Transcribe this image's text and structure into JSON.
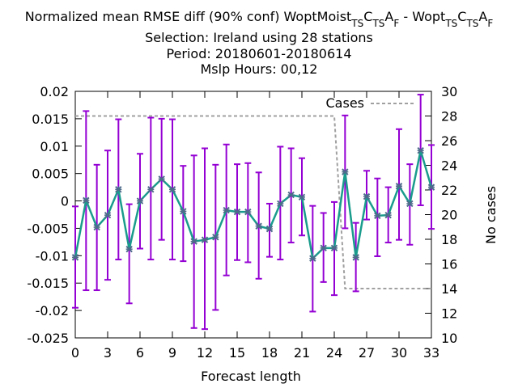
{
  "chart_data": {
    "type": "line",
    "title_lines": [
      "Normalized mean RMSE diff (90% conf) WoptMoist_T_SC_T_SA_F - Wopt_T_SC_T_SA_F",
      "Selection: Ireland using    28 stations",
      "Period: 20180601-20180614",
      "Mslp   Hours:  00,12"
    ],
    "title_first_line_parts": [
      {
        "text": "Normalized mean RMSE diff (90% conf) WoptMoist",
        "sub": false
      },
      {
        "text": "T",
        "sub": true
      },
      {
        "text": "S",
        "sub": true
      },
      {
        "text": "C",
        "sub": false
      },
      {
        "text": "T",
        "sub": true
      },
      {
        "text": "S",
        "sub": true
      },
      {
        "text": "A",
        "sub": false
      },
      {
        "text": "F",
        "sub": true
      },
      {
        "text": " - Wopt",
        "sub": false
      },
      {
        "text": "T",
        "sub": true
      },
      {
        "text": "S",
        "sub": true
      },
      {
        "text": "C",
        "sub": false
      },
      {
        "text": "T",
        "sub": true
      },
      {
        "text": "S",
        "sub": true
      },
      {
        "text": "A",
        "sub": false
      },
      {
        "text": "F",
        "sub": true
      }
    ],
    "xlabel": "Forecast length",
    "ylabel": "",
    "y2label": "No cases",
    "xlim": [
      0,
      33
    ],
    "ylim": [
      -0.025,
      0.02
    ],
    "y2lim": [
      10,
      30
    ],
    "xticks": [
      0,
      3,
      6,
      9,
      12,
      15,
      18,
      21,
      24,
      27,
      30,
      33
    ],
    "yticks": [
      -0.025,
      -0.02,
      -0.015,
      -0.01,
      -0.005,
      0,
      0.005,
      0.01,
      0.015,
      0.02
    ],
    "ytick_labels": [
      "-0.025",
      "-0.02",
      "-0.015",
      "-0.01",
      "-0.005",
      "0",
      "0.005",
      "0.01",
      "0.015",
      "0.02"
    ],
    "y2ticks": [
      10,
      12,
      14,
      16,
      18,
      20,
      22,
      24,
      26,
      28,
      30
    ],
    "legend": {
      "position": "top-right",
      "entries": [
        "Cases"
      ]
    },
    "grid": false,
    "series": [
      {
        "name": "",
        "kind": "mean-with-errorbars",
        "line_color": "#1a9c8c",
        "marker_color": "#4d6b8a",
        "errorbar_color": "#9400d3",
        "x": [
          0,
          1,
          2,
          3,
          4,
          5,
          6,
          7,
          8,
          9,
          10,
          11,
          12,
          13,
          14,
          15,
          16,
          17,
          18,
          19,
          20,
          21,
          22,
          23,
          24,
          25,
          26,
          27,
          28,
          29,
          30,
          31,
          32,
          33
        ],
        "y": [
          -0.0103,
          0.0001,
          -0.0048,
          -0.0026,
          0.0021,
          -0.0088,
          0.0,
          0.0021,
          0.004,
          0.0021,
          -0.0019,
          -0.0074,
          -0.0071,
          -0.0066,
          -0.0017,
          -0.002,
          -0.002,
          -0.0046,
          -0.0051,
          -0.0005,
          0.0011,
          0.0007,
          -0.0105,
          -0.0086,
          -0.0086,
          0.0053,
          -0.0103,
          0.0008,
          -0.0027,
          -0.0026,
          0.0027,
          -0.0005,
          0.0092,
          0.0025
        ],
        "lo": [
          -0.0195,
          -0.0163,
          -0.0163,
          -0.0144,
          -0.0107,
          -0.0187,
          -0.0087,
          -0.0107,
          -0.0071,
          -0.0107,
          -0.011,
          -0.0232,
          -0.0234,
          -0.0199,
          -0.0136,
          -0.0108,
          -0.0112,
          -0.0142,
          -0.0102,
          -0.0107,
          -0.0076,
          -0.0063,
          -0.0202,
          -0.0148,
          -0.0172,
          -0.005,
          -0.0165,
          -0.0034,
          -0.0101,
          -0.0076,
          -0.0071,
          -0.008,
          -0.0008,
          -0.0051
        ],
        "hi": [
          -0.001,
          0.0164,
          0.0066,
          0.0092,
          0.0149,
          -0.0006,
          0.0086,
          0.0152,
          0.015,
          0.0149,
          0.0064,
          0.0083,
          0.0096,
          0.0066,
          0.0103,
          0.0067,
          0.0069,
          0.0052,
          -0.0005,
          0.0099,
          0.0096,
          0.0078,
          -0.0009,
          -0.0022,
          -0.0002,
          0.0156,
          -0.004,
          0.0055,
          0.0041,
          0.0025,
          0.0131,
          0.0067,
          0.0194,
          0.0102
        ]
      },
      {
        "name": "Cases",
        "axis": "y2",
        "style": "dashed",
        "color": "#a0a0a0",
        "x": [
          0,
          24,
          25,
          33
        ],
        "y": [
          28,
          28,
          14,
          14
        ]
      }
    ]
  }
}
